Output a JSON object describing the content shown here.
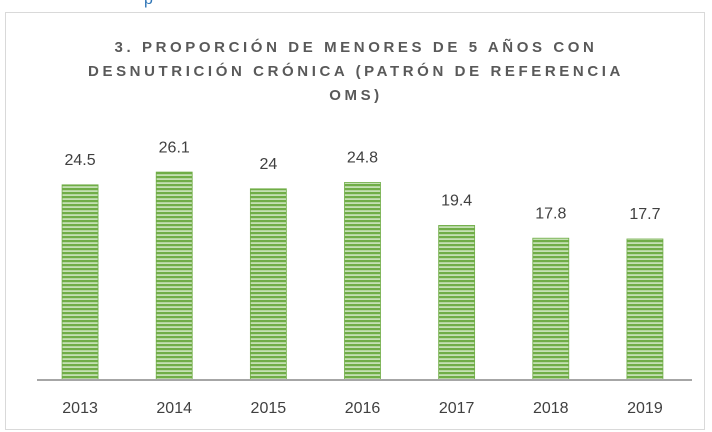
{
  "header_fragment": "p",
  "chart_data": {
    "type": "bar",
    "title": "3. PROPORCIÓN DE MENORES DE 5 AÑOS CON DESNUTRICIÓN CRÓNICA (PATRÓN DE REFERENCIA OMS)",
    "categories": [
      "2013",
      "2014",
      "2015",
      "2016",
      "2017",
      "2018",
      "2019"
    ],
    "values": [
      24.5,
      26.1,
      24,
      24.8,
      19.4,
      17.8,
      17.7
    ],
    "color": "#70ad47",
    "ylim": [
      0,
      30
    ],
    "grid": false
  }
}
